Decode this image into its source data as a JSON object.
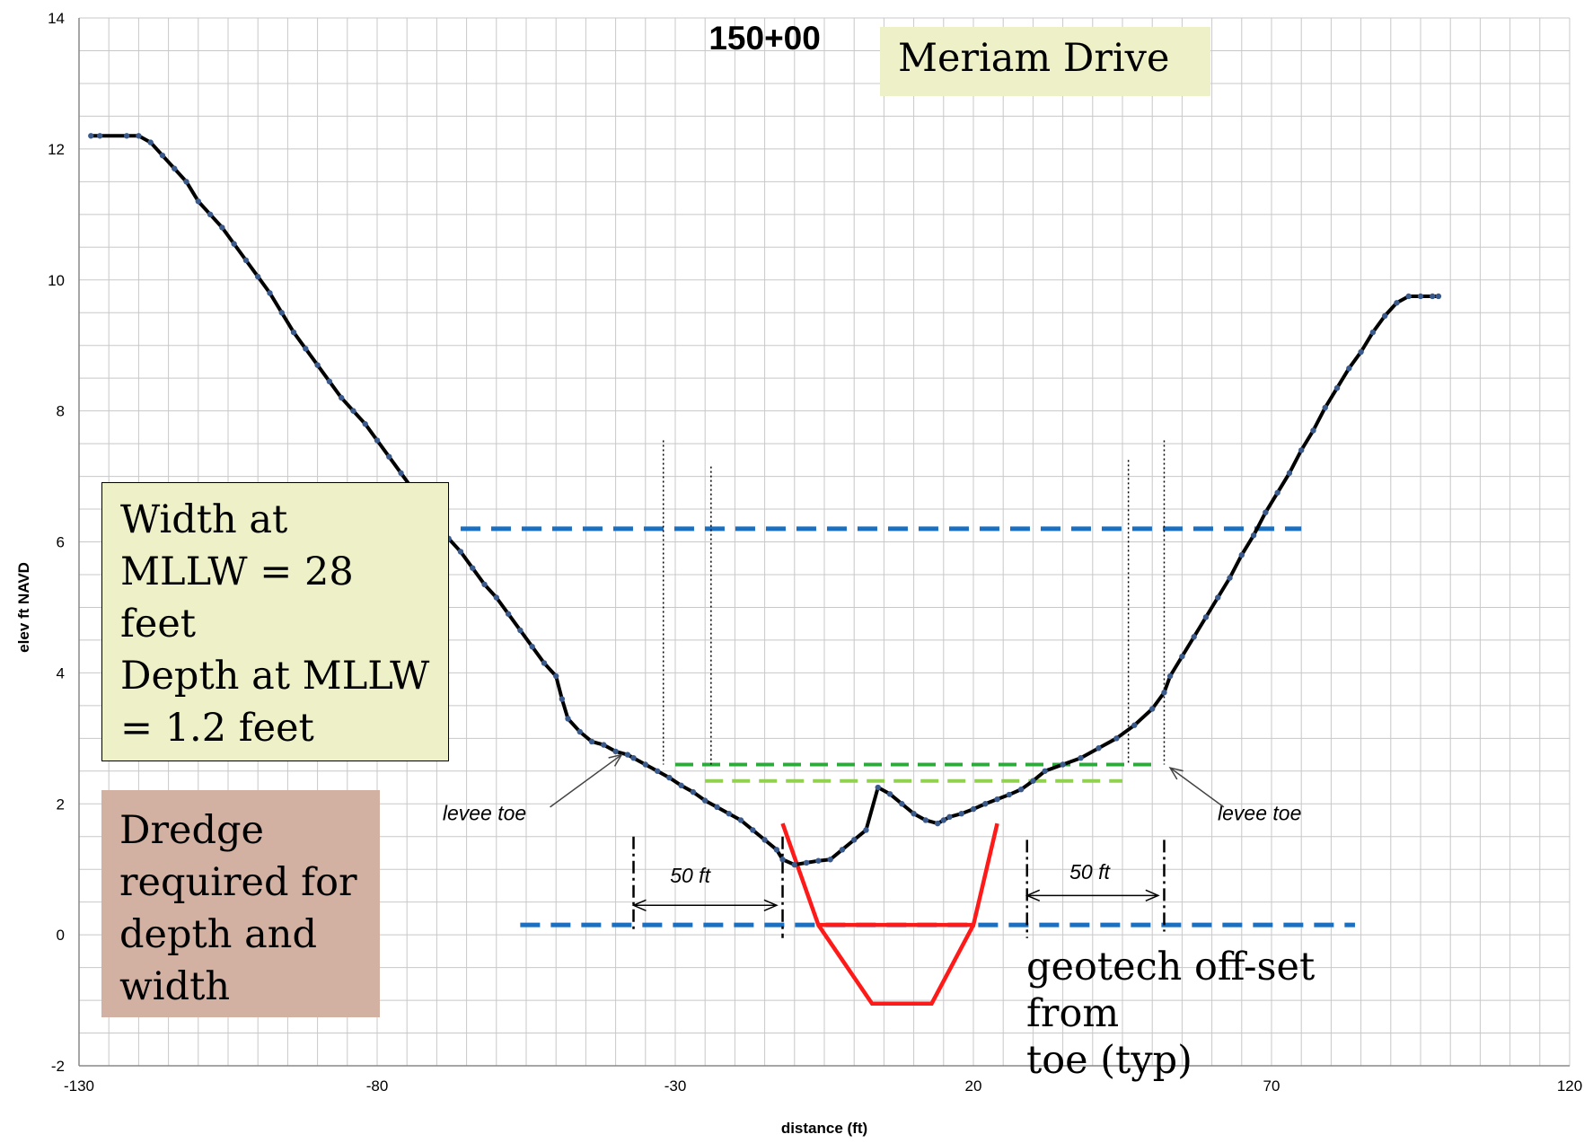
{
  "chart_data": {
    "type": "line",
    "title": "150+00",
    "xlabel": "distance (ft)",
    "ylabel": "elev ft NAVD",
    "xlim": [
      -130,
      120
    ],
    "ylim": [
      -2,
      14
    ],
    "xticks": [
      -130,
      -80,
      -30,
      20,
      70,
      120
    ],
    "yticks": [
      -2,
      0,
      2,
      4,
      6,
      8,
      10,
      12,
      14
    ],
    "grid": true,
    "series": [
      {
        "color": "#000000",
        "marker_color": "#3a5a8c",
        "x": [
          -128,
          -126.5,
          -122,
          -120,
          -118,
          -116,
          -114,
          -112,
          -110,
          -108,
          -106,
          -104,
          -102,
          -100,
          -98,
          -96,
          -94,
          -92,
          -90,
          -88,
          -86,
          -84,
          -82,
          -80,
          -78,
          -76,
          -74,
          -72,
          -70,
          -68,
          -66,
          -64,
          -62,
          -60,
          -58,
          -56,
          -54,
          -52,
          -50,
          -49,
          -48,
          -46,
          -44,
          -42,
          -40,
          -38,
          -37,
          -35,
          -33,
          -31,
          -29,
          -27,
          -25,
          -23,
          -21,
          -19,
          -17,
          -15,
          -13,
          -12,
          -10,
          -8,
          -6,
          -4,
          -2,
          0,
          2,
          4,
          6,
          8,
          10,
          12,
          14,
          15,
          16,
          18,
          20,
          22,
          24,
          26,
          28,
          30,
          32,
          35,
          38,
          41,
          44,
          47,
          50,
          52,
          53,
          55,
          57,
          59,
          61,
          63,
          65,
          67,
          69,
          71,
          73,
          75,
          77,
          79,
          81,
          83,
          85,
          87,
          89,
          91,
          93,
          95,
          97,
          98
        ],
        "y": [
          12.2,
          12.2,
          12.2,
          12.2,
          12.1,
          11.9,
          11.7,
          11.5,
          11.2,
          11.0,
          10.8,
          10.55,
          10.3,
          10.05,
          9.8,
          9.5,
          9.2,
          8.95,
          8.7,
          8.45,
          8.2,
          8.0,
          7.8,
          7.55,
          7.3,
          7.05,
          6.8,
          6.55,
          6.3,
          6.05,
          5.85,
          5.6,
          5.35,
          5.15,
          4.9,
          4.65,
          4.4,
          4.15,
          3.95,
          3.6,
          3.3,
          3.1,
          2.95,
          2.9,
          2.8,
          2.75,
          2.7,
          2.6,
          2.5,
          2.4,
          2.28,
          2.18,
          2.05,
          1.95,
          1.85,
          1.75,
          1.6,
          1.45,
          1.3,
          1.15,
          1.07,
          1.1,
          1.13,
          1.15,
          1.3,
          1.45,
          1.6,
          2.25,
          2.15,
          2.0,
          1.85,
          1.75,
          1.7,
          1.75,
          1.8,
          1.85,
          1.92,
          2.0,
          2.07,
          2.14,
          2.22,
          2.35,
          2.5,
          2.6,
          2.7,
          2.85,
          3.0,
          3.2,
          3.45,
          3.7,
          3.95,
          4.25,
          4.55,
          4.85,
          5.15,
          5.45,
          5.8,
          6.1,
          6.45,
          6.75,
          7.05,
          7.4,
          7.7,
          8.05,
          8.35,
          8.65,
          8.9,
          9.2,
          9.45,
          9.65,
          9.75,
          9.75,
          9.75,
          9.75
        ]
      }
    ],
    "annotations": {
      "levee_toe_label": "levee toe",
      "offset_label": "50 ft"
    }
  },
  "labels": {
    "street": "Meriam Drive",
    "width_box_lines": [
      "Width at",
      "MLLW = 28",
      "feet",
      "Depth at MLLW",
      "= 1.2 feet"
    ],
    "dredge_box_lines": [
      "Dredge",
      "required for",
      "depth and",
      "width"
    ],
    "geotech_lines": [
      "geotech off-set from",
      "toe (typ)"
    ]
  },
  "colors": {
    "profile": "#000000",
    "marker": "#3a5a8c",
    "water_level": "#1a6fc0",
    "dredge_template": "#ff1a1a",
    "green_dark": "#2eaa3c",
    "green_light": "#92d050",
    "grid": "#c8c8c8"
  }
}
